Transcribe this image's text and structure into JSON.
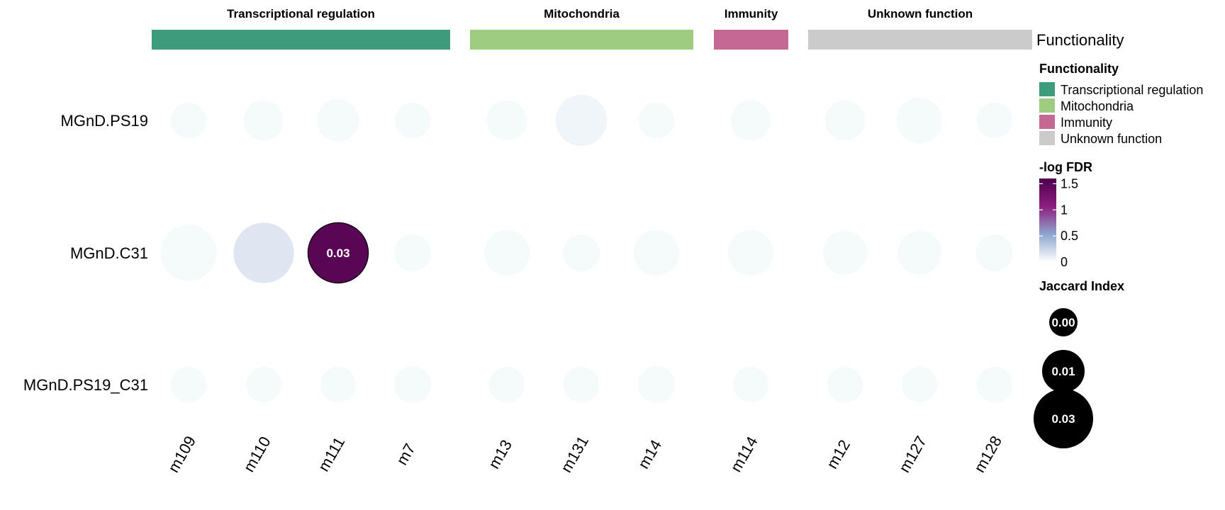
{
  "chart_data": {
    "type": "dotplot-heatmap",
    "rows": [
      "MGnD.PS19",
      "MGnD.C31",
      "MGnD.PS19_C31"
    ],
    "columns": [
      "m109",
      "m110",
      "m111",
      "m7",
      "m13",
      "m131",
      "m14",
      "m114",
      "m12",
      "m127",
      "m128"
    ],
    "groups": [
      {
        "name": "Transcriptional regulation",
        "color": "#3e9c7c",
        "columns": [
          "m109",
          "m110",
          "m111",
          "m7"
        ]
      },
      {
        "name": "Mitochondria",
        "color": "#9ecd82",
        "columns": [
          "m13",
          "m131",
          "m14"
        ]
      },
      {
        "name": "Immunity",
        "color": "#c56894",
        "columns": [
          "m114"
        ]
      },
      {
        "name": "Unknown function",
        "color": "#cbcbcb",
        "columns": [
          "m12",
          "m127",
          "m128"
        ]
      }
    ],
    "annotation_label": "Functionality",
    "jaccard": [
      [
        0.0015,
        0.0025,
        0.003,
        0.0015,
        0.0025,
        0.006,
        0.0015,
        0.0025,
        0.0025,
        0.004,
        0.0015
      ],
      [
        0.008,
        0.01,
        0.01,
        0.0018,
        0.004,
        0.0018,
        0.004,
        0.004,
        0.0035,
        0.0035,
        0.0018
      ],
      [
        0.0015,
        0.0015,
        0.0015,
        0.0018,
        0.0015,
        0.0015,
        0.0018,
        0.0015,
        0.0015,
        0.0015,
        0.0015
      ]
    ],
    "neg_log_fdr": [
      [
        0.03,
        0.03,
        0.03,
        0.03,
        0.03,
        0.06,
        0.03,
        0.03,
        0.03,
        0.03,
        0.03
      ],
      [
        0.03,
        0.15,
        1.5,
        0.03,
        0.03,
        0.03,
        0.03,
        0.03,
        0.03,
        0.03,
        0.03
      ],
      [
        0.03,
        0.03,
        0.03,
        0.03,
        0.03,
        0.03,
        0.03,
        0.03,
        0.03,
        0.03,
        0.03
      ]
    ],
    "cell_labels": [
      {
        "row": 1,
        "col": 2,
        "text": "0.03"
      }
    ],
    "legend": {
      "functionality_title": "Functionality",
      "functionality_items": [
        {
          "name": "Transcriptional regulation",
          "color": "#3e9c7c"
        },
        {
          "name": "Mitochondria",
          "color": "#9ecd82"
        },
        {
          "name": "Immunity",
          "color": "#c56894"
        },
        {
          "name": "Unknown function",
          "color": "#cbcbcb"
        }
      ],
      "fdr_title": "-log FDR",
      "fdr_ticks": [
        {
          "value": 1.5,
          "label": "1.5"
        },
        {
          "value": 1,
          "label": "1"
        },
        {
          "value": 0.5,
          "label": "0.5"
        },
        {
          "value": 0,
          "label": "0"
        }
      ],
      "fdr_range": [
        0,
        1.6
      ],
      "fdr_colors": [
        "#ffffff",
        "#8ea6ce",
        "#8c1e7e",
        "#4d004b"
      ],
      "jaccard_title": "Jaccard Index",
      "jaccard_items": [
        {
          "value": 0.0,
          "label": "0.00"
        },
        {
          "value": 0.01,
          "label": "0.01"
        },
        {
          "value": 0.03,
          "label": "0.03"
        }
      ]
    }
  }
}
